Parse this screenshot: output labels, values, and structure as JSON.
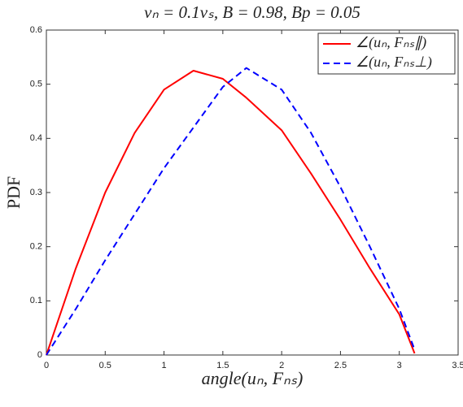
{
  "chart_data": {
    "type": "line",
    "title": "νₙ = 0.1νₛ, B = 0.98, Bp = 0.05",
    "x_label": "angle(uₙ, Fₙₛ)",
    "y_label": "PDF",
    "x": [
      0,
      0.25,
      0.5,
      0.75,
      1,
      1.25,
      1.5,
      1.7,
      2,
      2.25,
      2.5,
      2.75,
      3,
      3.13
    ],
    "series": [
      {
        "name": "∠(uₙ, Fₙₛ∥)",
        "color": "#ff0000",
        "linestyle": "solid",
        "values": [
          0,
          0.16,
          0.3,
          0.41,
          0.49,
          0.525,
          0.51,
          0.475,
          0.415,
          0.335,
          0.25,
          0.16,
          0.075,
          0.003
        ]
      },
      {
        "name": "∠(uₙ, Fₙₛ⊥)",
        "color": "#0000ff",
        "linestyle": "dashed",
        "values": [
          0,
          0.085,
          0.175,
          0.26,
          0.345,
          0.42,
          0.495,
          0.53,
          0.49,
          0.41,
          0.31,
          0.2,
          0.085,
          0.01
        ]
      }
    ],
    "xlim": [
      0,
      3.5
    ],
    "xticks": [
      0,
      0.5,
      1,
      1.5,
      2,
      2.5,
      3,
      3.5
    ],
    "ylim": [
      0,
      0.6
    ],
    "yticks": [
      0,
      0.1,
      0.2,
      0.3,
      0.4,
      0.5,
      0.6
    ],
    "grid": false,
    "legend": "upper right"
  }
}
